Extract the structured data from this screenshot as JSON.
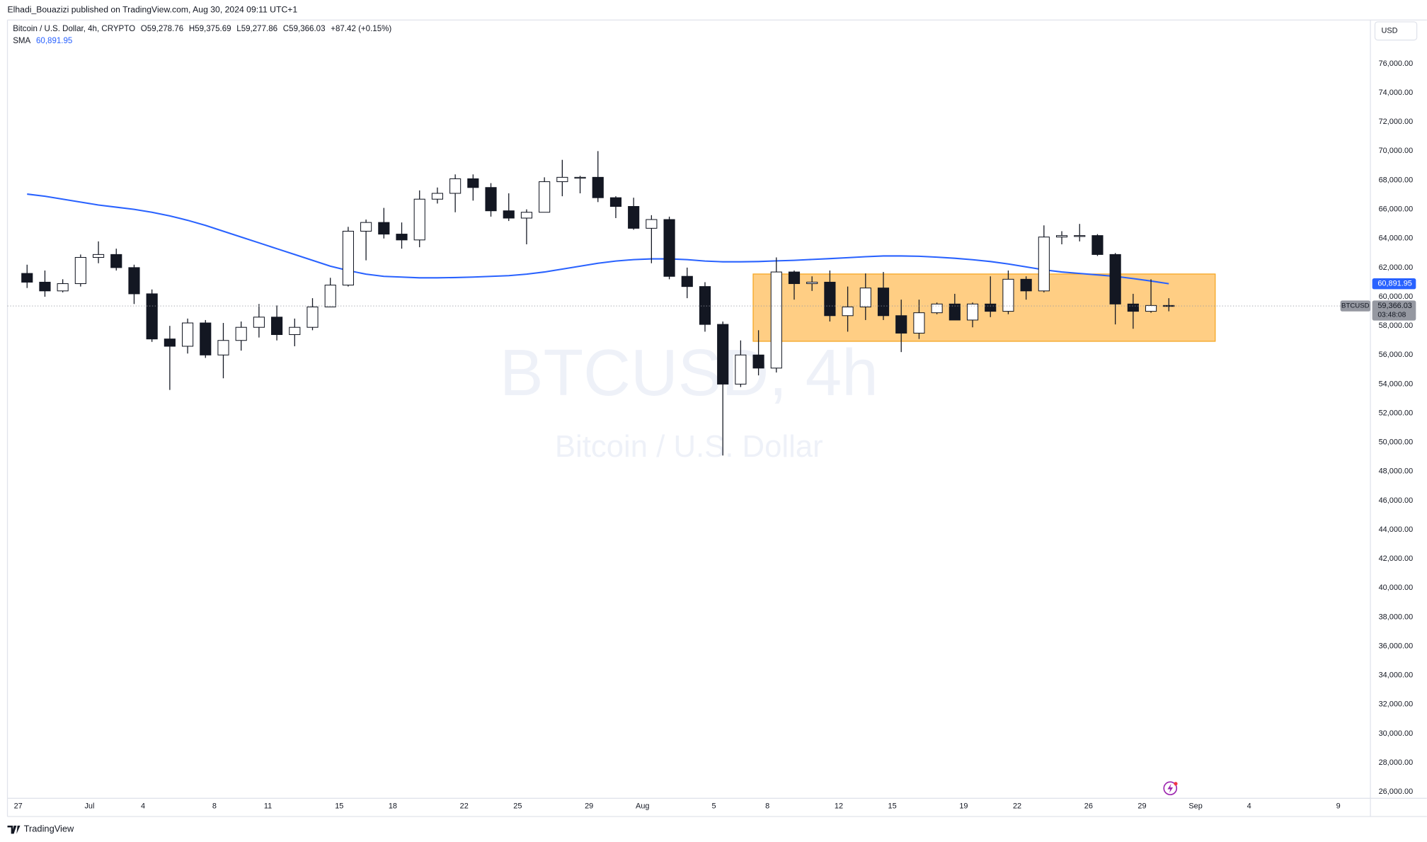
{
  "header": {
    "published": "Elhadi_Bouazizi published on TradingView.com, Aug 30, 2024 09:11 UTC+1",
    "symbol_line": "Bitcoin / U.S. Dollar, 4h, CRYPTO",
    "ohlc": [
      {
        "label": "O",
        "value": "59,278.76"
      },
      {
        "label": "H",
        "value": "59,375.69"
      },
      {
        "label": "L",
        "value": "59,277.86"
      },
      {
        "label": "C",
        "value": "59,366.03"
      }
    ],
    "change": "+87.42 (+0.15%)",
    "sma_label": "SMA"
  },
  "watermark": {
    "line1": "BTCUSD, 4h",
    "line2": "Bitcoin / U.S. Dollar"
  },
  "currency": "USD",
  "footer": "TradingView",
  "chart_data": {
    "type": "candlestick",
    "up_color": "#ffffff",
    "down_color": "#131722",
    "wick_color": "#131722",
    "open": [
      61600,
      61000,
      60400,
      60900,
      62700,
      62900,
      62000,
      60200,
      57100,
      56600,
      58200,
      56000,
      57000,
      57900,
      58600,
      57400,
      57900,
      59300,
      60800,
      64500,
      65100,
      64300,
      63900,
      66700,
      67100,
      68100,
      67500,
      65900,
      65400,
      65800,
      67900,
      68200,
      68200,
      66800,
      66200,
      64700,
      65300,
      61400,
      60700,
      58100,
      54000,
      56000,
      55100,
      61700,
      60900,
      61000,
      58700,
      59300,
      60600,
      58700,
      57500,
      58900,
      59500,
      58400,
      59500,
      59000,
      61200,
      60400,
      64100,
      64200,
      64200,
      62900,
      59500,
      59000,
      59400
    ],
    "high": [
      62200,
      61800,
      61200,
      62900,
      63800,
      63300,
      62200,
      60500,
      58000,
      58500,
      58400,
      58200,
      58300,
      59500,
      59400,
      58500,
      59900,
      61300,
      64800,
      65300,
      66100,
      65100,
      67300,
      67500,
      68400,
      68400,
      67800,
      67100,
      66000,
      68200,
      69400,
      68300,
      70000,
      66900,
      66800,
      65600,
      65500,
      62000,
      61000,
      58300,
      57000,
      57700,
      62700,
      61800,
      61400,
      61800,
      60700,
      61600,
      61700,
      59800,
      59800,
      59600,
      60200,
      59600,
      61400,
      61800,
      61400,
      64900,
      64500,
      65000,
      64300,
      63000,
      60200,
      61200,
      59900
    ],
    "low": [
      60600,
      60000,
      60300,
      60700,
      62300,
      61800,
      59500,
      56900,
      53600,
      56100,
      55800,
      54400,
      56300,
      57200,
      57000,
      56600,
      57700,
      59300,
      60700,
      62500,
      64000,
      63300,
      63400,
      66400,
      65800,
      66600,
      65500,
      65200,
      63600,
      65800,
      66900,
      67100,
      66500,
      65400,
      64600,
      62300,
      61200,
      59900,
      57600,
      49100,
      53800,
      54600,
      54800,
      59800,
      60400,
      58300,
      57600,
      58400,
      58400,
      56200,
      57100,
      58800,
      58400,
      57900,
      58600,
      58800,
      59800,
      60300,
      63600,
      63800,
      62800,
      58100,
      57800,
      58900,
      59000
    ],
    "close": [
      61000,
      60400,
      60900,
      62700,
      62900,
      62000,
      60200,
      57100,
      56600,
      58200,
      56000,
      57000,
      57900,
      58600,
      57400,
      57900,
      59300,
      60800,
      64500,
      65100,
      64300,
      63900,
      66700,
      67100,
      68100,
      67500,
      65900,
      65400,
      65800,
      67900,
      68200,
      68200,
      66800,
      66200,
      64700,
      65300,
      61400,
      60700,
      58100,
      54000,
      56000,
      55100,
      61700,
      60900,
      61000,
      58700,
      59300,
      60600,
      58700,
      57500,
      58900,
      59500,
      58400,
      59500,
      59000,
      61200,
      60400,
      64100,
      64200,
      64200,
      62900,
      59500,
      59000,
      59400,
      59366.03
    ],
    "series": [
      {
        "name": "SMA",
        "color": "#2962ff",
        "values": [
          67050,
          66900,
          66700,
          66500,
          66300,
          66150,
          66000,
          65800,
          65550,
          65250,
          64900,
          64500,
          64100,
          63700,
          63300,
          62900,
          62500,
          62100,
          61800,
          61550,
          61400,
          61350,
          61300,
          61300,
          61320,
          61350,
          61400,
          61450,
          61550,
          61700,
          61900,
          62100,
          62300,
          62450,
          62550,
          62600,
          62600,
          62550,
          62450,
          62400,
          62400,
          62420,
          62460,
          62500,
          62560,
          62620,
          62680,
          62750,
          62800,
          62800,
          62780,
          62720,
          62640,
          62540,
          62420,
          62250,
          62050,
          61850,
          61700,
          61600,
          61500,
          61400,
          61250,
          61080,
          60891.95
        ],
        "value_label": "60,891.95"
      }
    ],
    "price_line": {
      "value": 59366.03,
      "label": "59,366.03",
      "countdown": "03:48:08",
      "symbol": "BTCUSD",
      "color": "#9598a1"
    },
    "box": {
      "x0": 41.2,
      "x1": 67.1,
      "y0": 56940,
      "y1": 61560,
      "fill": "#ffc56e",
      "stroke": "#f5a623"
    },
    "xlim": [
      -0.6,
      75.8
    ],
    "ylim": [
      25560,
      79000
    ],
    "xticks": [
      {
        "value": 0,
        "label": "27"
      },
      {
        "value": 4,
        "label": "Jul"
      },
      {
        "value": 7,
        "label": "4"
      },
      {
        "value": 11,
        "label": "8"
      },
      {
        "value": 14,
        "label": "11"
      },
      {
        "value": 18,
        "label": "15"
      },
      {
        "value": 21,
        "label": "18"
      },
      {
        "value": 25,
        "label": "22"
      },
      {
        "value": 28,
        "label": "25"
      },
      {
        "value": 32,
        "label": "29"
      },
      {
        "value": 35,
        "label": "Aug"
      },
      {
        "value": 39,
        "label": "5"
      },
      {
        "value": 42,
        "label": "8"
      },
      {
        "value": 46,
        "label": "12"
      },
      {
        "value": 49,
        "label": "15"
      },
      {
        "value": 53,
        "label": "19"
      },
      {
        "value": 56,
        "label": "22"
      },
      {
        "value": 60,
        "label": "26"
      },
      {
        "value": 63,
        "label": "29"
      },
      {
        "value": 66,
        "label": "Sep"
      },
      {
        "value": 69,
        "label": "4"
      },
      {
        "value": 74,
        "label": "9"
      }
    ],
    "yticks": [
      {
        "value": 26000,
        "label": "26,000.00"
      },
      {
        "value": 28000,
        "label": "28,000.00"
      },
      {
        "value": 30000,
        "label": "30,000.00"
      },
      {
        "value": 32000,
        "label": "32,000.00"
      },
      {
        "value": 34000,
        "label": "34,000.00"
      },
      {
        "value": 36000,
        "label": "36,000.00"
      },
      {
        "value": 38000,
        "label": "38,000.00"
      },
      {
        "value": 40000,
        "label": "40,000.00"
      },
      {
        "value": 42000,
        "label": "42,000.00"
      },
      {
        "value": 44000,
        "label": "44,000.00"
      },
      {
        "value": 46000,
        "label": "46,000.00"
      },
      {
        "value": 48000,
        "label": "48,000.00"
      },
      {
        "value": 50000,
        "label": "50,000.00"
      },
      {
        "value": 52000,
        "label": "52,000.00"
      },
      {
        "value": 54000,
        "label": "54,000.00"
      },
      {
        "value": 56000,
        "label": "56,000.00"
      },
      {
        "value": 58000,
        "label": "58,000.00"
      },
      {
        "value": 60000,
        "label": "60,000.00"
      },
      {
        "value": 62000,
        "label": "62,000.00"
      },
      {
        "value": 64000,
        "label": "64,000.00"
      },
      {
        "value": 66000,
        "label": "66,000.00"
      },
      {
        "value": 68000,
        "label": "68,000.00"
      },
      {
        "value": 70000,
        "label": "70,000.00"
      },
      {
        "value": 72000,
        "label": "72,000.00"
      },
      {
        "value": 74000,
        "label": "74,000.00"
      },
      {
        "value": 76000,
        "label": "76,000.00"
      }
    ],
    "grid": false
  }
}
